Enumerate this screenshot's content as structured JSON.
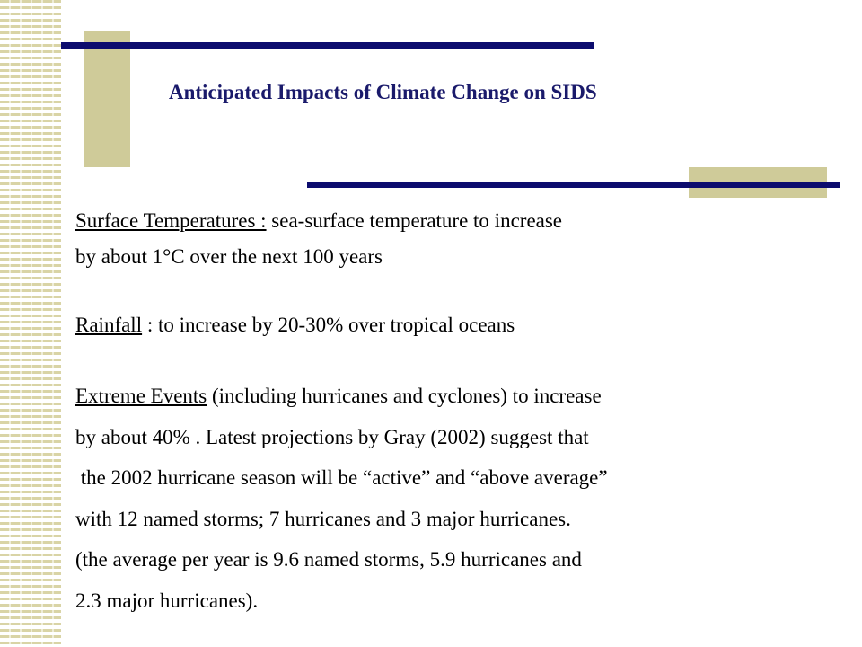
{
  "slide": {
    "title": "Anticipated Impacts of Climate Change on SIDS",
    "surface_temperatures": {
      "label": "Surface Temperatures :",
      "line1_rest": " sea-surface temperature to increase",
      "line2": "by about 1°C over the next 100 years"
    },
    "rainfall": {
      "label": "Rainfall",
      "rest": " : to increase by 20-30% over tropical oceans"
    },
    "extreme_events": {
      "label": "Extreme Events",
      "line1_rest": " (including hurricanes and cyclones) to increase",
      "lines": [
        "by about 40% . Latest projections by Gray (2002) suggest that",
        " the 2002 hurricane season will be “active” and “above average”",
        "with 12 named storms; 7 hurricanes and 3 major hurricanes.",
        "(the average per year is 9.6 named storms, 5.9 hurricanes and",
        "2.3 major hurricanes)."
      ]
    }
  }
}
